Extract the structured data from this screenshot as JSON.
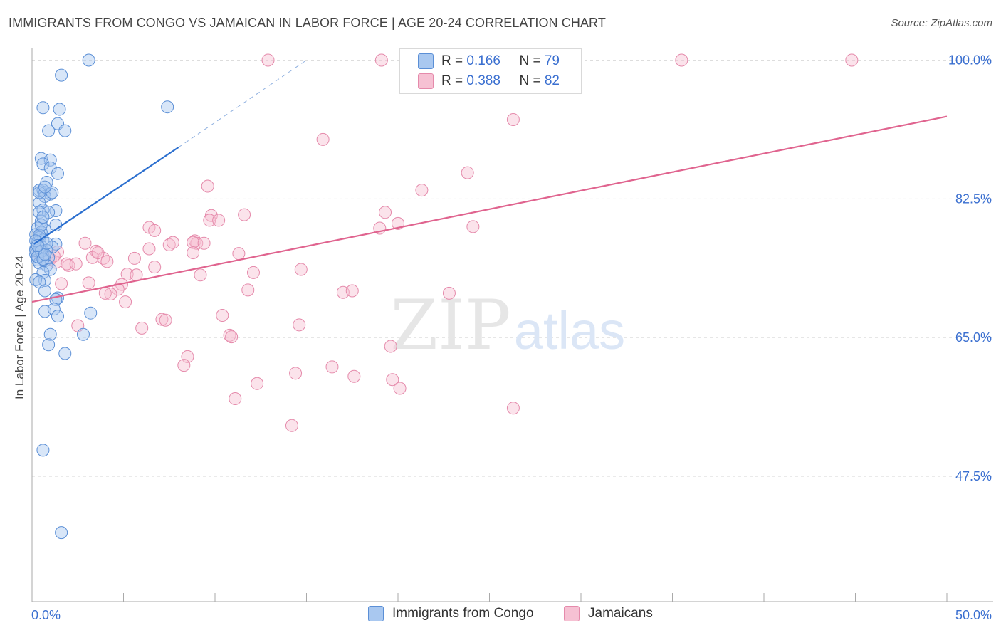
{
  "title": "IMMIGRANTS FROM CONGO VS JAMAICAN IN LABOR FORCE | AGE 20-24 CORRELATION CHART",
  "source": "Source: ZipAtlas.com",
  "watermark": {
    "zip": "ZIP",
    "atlas": "atlas"
  },
  "legend": {
    "series1": {
      "r_label": "R = ",
      "r_value": "0.166",
      "n_label": "N = ",
      "n_value": "79"
    },
    "series2": {
      "r_label": "R = ",
      "r_value": "0.388",
      "n_label": "N = ",
      "n_value": "82"
    }
  },
  "colors": {
    "blue_fill": "#a9c8f0",
    "blue_stroke": "#5b8fd6",
    "blue_line": "#2b6fcf",
    "pink_fill": "#f6c1d3",
    "pink_stroke": "#e58aab",
    "pink_line": "#e0648f",
    "axis_text": "#3a6fd0",
    "grid": "#dddddd"
  },
  "chart_data": {
    "type": "scatter",
    "title": "IMMIGRANTS FROM CONGO VS JAMAICAN IN LABOR FORCE | AGE 20-24 CORRELATION CHART",
    "xlabel": "",
    "ylabel": "In Labor Force | Age 20-24",
    "xlim": [
      0,
      50
    ],
    "ylim": [
      31.7,
      102.2
    ],
    "x_tick_labels": [
      "0.0%",
      "50.0%"
    ],
    "y_ticks": [
      47.5,
      65.0,
      82.5,
      100.0
    ],
    "y_tick_labels": [
      "47.5%",
      "65.0%",
      "82.5%",
      "100.0%"
    ],
    "grid": true,
    "legend_position": "top-center",
    "series": [
      {
        "name": "Immigrants from Congo",
        "color": "#5b8fd6",
        "trend": {
          "x": [
            0.1,
            8.0
          ],
          "y": [
            76.8,
            89.0
          ],
          "dashed_to": [
            15.0,
            100.0
          ]
        },
        "points": [
          [
            3.1,
            100.0
          ],
          [
            1.6,
            98.1
          ],
          [
            7.4,
            94.1
          ],
          [
            0.6,
            94.0
          ],
          [
            1.5,
            93.8
          ],
          [
            1.4,
            92.0
          ],
          [
            0.9,
            91.1
          ],
          [
            1.8,
            91.1
          ],
          [
            0.5,
            87.6
          ],
          [
            1.0,
            87.4
          ],
          [
            0.6,
            86.9
          ],
          [
            1.0,
            86.4
          ],
          [
            1.4,
            85.7
          ],
          [
            0.8,
            84.6
          ],
          [
            0.4,
            83.6
          ],
          [
            0.6,
            83.6
          ],
          [
            0.7,
            83.3
          ],
          [
            1.0,
            83.1
          ],
          [
            0.7,
            82.8
          ],
          [
            0.4,
            82.0
          ],
          [
            0.6,
            81.1
          ],
          [
            1.3,
            81.0
          ],
          [
            0.4,
            80.8
          ],
          [
            0.9,
            80.8
          ],
          [
            0.5,
            79.7
          ],
          [
            1.3,
            79.2
          ],
          [
            0.3,
            78.8
          ],
          [
            0.7,
            78.6
          ],
          [
            0.5,
            78.3
          ],
          [
            0.2,
            78.0
          ],
          [
            0.4,
            77.6
          ],
          [
            0.6,
            77.3
          ],
          [
            0.3,
            77.0
          ],
          [
            1.3,
            76.8
          ],
          [
            0.5,
            76.5
          ],
          [
            0.2,
            76.2
          ],
          [
            1.1,
            76.4
          ],
          [
            0.8,
            76.0
          ],
          [
            0.4,
            75.7
          ],
          [
            0.2,
            75.5
          ],
          [
            0.6,
            75.3
          ],
          [
            0.9,
            75.1
          ],
          [
            0.3,
            74.8
          ],
          [
            0.7,
            74.7
          ],
          [
            0.4,
            74.4
          ],
          [
            0.8,
            74.1
          ],
          [
            1.0,
            73.6
          ],
          [
            0.6,
            73.2
          ],
          [
            0.7,
            72.2
          ],
          [
            0.2,
            72.3
          ],
          [
            0.4,
            72.0
          ],
          [
            0.7,
            70.9
          ],
          [
            1.4,
            70.0
          ],
          [
            1.3,
            69.8
          ],
          [
            0.7,
            68.3
          ],
          [
            1.2,
            68.6
          ],
          [
            3.2,
            68.1
          ],
          [
            1.4,
            67.7
          ],
          [
            2.8,
            65.4
          ],
          [
            1.0,
            65.4
          ],
          [
            0.9,
            64.1
          ],
          [
            1.8,
            63.0
          ],
          [
            0.6,
            50.8
          ],
          [
            1.6,
            40.4
          ],
          [
            0.2,
            76.0
          ],
          [
            0.4,
            76.3
          ],
          [
            0.5,
            75.9
          ],
          [
            0.3,
            75.2
          ],
          [
            0.6,
            74.9
          ],
          [
            0.7,
            75.5
          ],
          [
            0.4,
            77.9
          ],
          [
            0.2,
            77.2
          ],
          [
            0.5,
            79.2
          ],
          [
            0.8,
            76.9
          ],
          [
            0.3,
            76.6
          ],
          [
            0.6,
            80.2
          ],
          [
            0.4,
            83.3
          ],
          [
            1.1,
            83.3
          ],
          [
            0.7,
            84.0
          ]
        ]
      },
      {
        "name": "Jamaicans",
        "color": "#e58aab",
        "trend": {
          "x": [
            0.0,
            50.0
          ],
          "y": [
            69.5,
            92.9
          ]
        },
        "points": [
          [
            12.9,
            100.0
          ],
          [
            19.1,
            100.0
          ],
          [
            35.5,
            100.0
          ],
          [
            44.8,
            100.0
          ],
          [
            26.7,
            100.0
          ],
          [
            29.2,
            100.0
          ],
          [
            26.3,
            92.5
          ],
          [
            15.9,
            90.0
          ],
          [
            23.8,
            85.8
          ],
          [
            21.3,
            83.6
          ],
          [
            9.6,
            84.1
          ],
          [
            11.6,
            80.5
          ],
          [
            9.8,
            80.4
          ],
          [
            19.3,
            80.8
          ],
          [
            9.7,
            79.8
          ],
          [
            19.0,
            78.8
          ],
          [
            24.1,
            79.0
          ],
          [
            20.0,
            79.4
          ],
          [
            6.4,
            78.9
          ],
          [
            6.7,
            78.5
          ],
          [
            8.9,
            77.2
          ],
          [
            9.0,
            76.9
          ],
          [
            7.5,
            76.7
          ],
          [
            7.7,
            77.0
          ],
          [
            8.8,
            77.0
          ],
          [
            2.9,
            76.9
          ],
          [
            3.5,
            75.9
          ],
          [
            6.4,
            76.2
          ],
          [
            8.8,
            75.7
          ],
          [
            11.3,
            75.6
          ],
          [
            1.4,
            75.8
          ],
          [
            0.4,
            75.5
          ],
          [
            1.0,
            74.9
          ],
          [
            3.3,
            75.1
          ],
          [
            3.9,
            75.0
          ],
          [
            5.6,
            75.0
          ],
          [
            1.3,
            74.5
          ],
          [
            2.0,
            74.1
          ],
          [
            1.9,
            74.3
          ],
          [
            2.4,
            74.3
          ],
          [
            4.1,
            74.6
          ],
          [
            6.7,
            73.9
          ],
          [
            14.7,
            73.6
          ],
          [
            12.1,
            73.2
          ],
          [
            5.2,
            73.0
          ],
          [
            5.7,
            72.9
          ],
          [
            9.2,
            72.9
          ],
          [
            1.6,
            71.8
          ],
          [
            3.1,
            71.9
          ],
          [
            4.9,
            71.7
          ],
          [
            4.7,
            71.1
          ],
          [
            4.3,
            70.5
          ],
          [
            4.0,
            70.6
          ],
          [
            11.8,
            71.0
          ],
          [
            17.0,
            70.7
          ],
          [
            17.5,
            70.9
          ],
          [
            22.8,
            70.6
          ],
          [
            5.1,
            69.5
          ],
          [
            10.4,
            67.8
          ],
          [
            7.1,
            67.3
          ],
          [
            7.3,
            67.2
          ],
          [
            6.0,
            66.2
          ],
          [
            2.5,
            66.5
          ],
          [
            14.6,
            66.6
          ],
          [
            10.8,
            65.3
          ],
          [
            10.9,
            65.1
          ],
          [
            19.6,
            63.9
          ],
          [
            8.5,
            62.6
          ],
          [
            8.3,
            61.5
          ],
          [
            16.4,
            61.3
          ],
          [
            14.4,
            60.5
          ],
          [
            17.6,
            60.1
          ],
          [
            19.7,
            59.7
          ],
          [
            12.3,
            59.2
          ],
          [
            20.1,
            58.6
          ],
          [
            11.1,
            57.3
          ],
          [
            26.3,
            56.1
          ],
          [
            14.2,
            53.9
          ],
          [
            10.2,
            79.8
          ],
          [
            9.4,
            76.9
          ],
          [
            3.6,
            75.7
          ],
          [
            1.2,
            75.3
          ]
        ]
      }
    ]
  }
}
